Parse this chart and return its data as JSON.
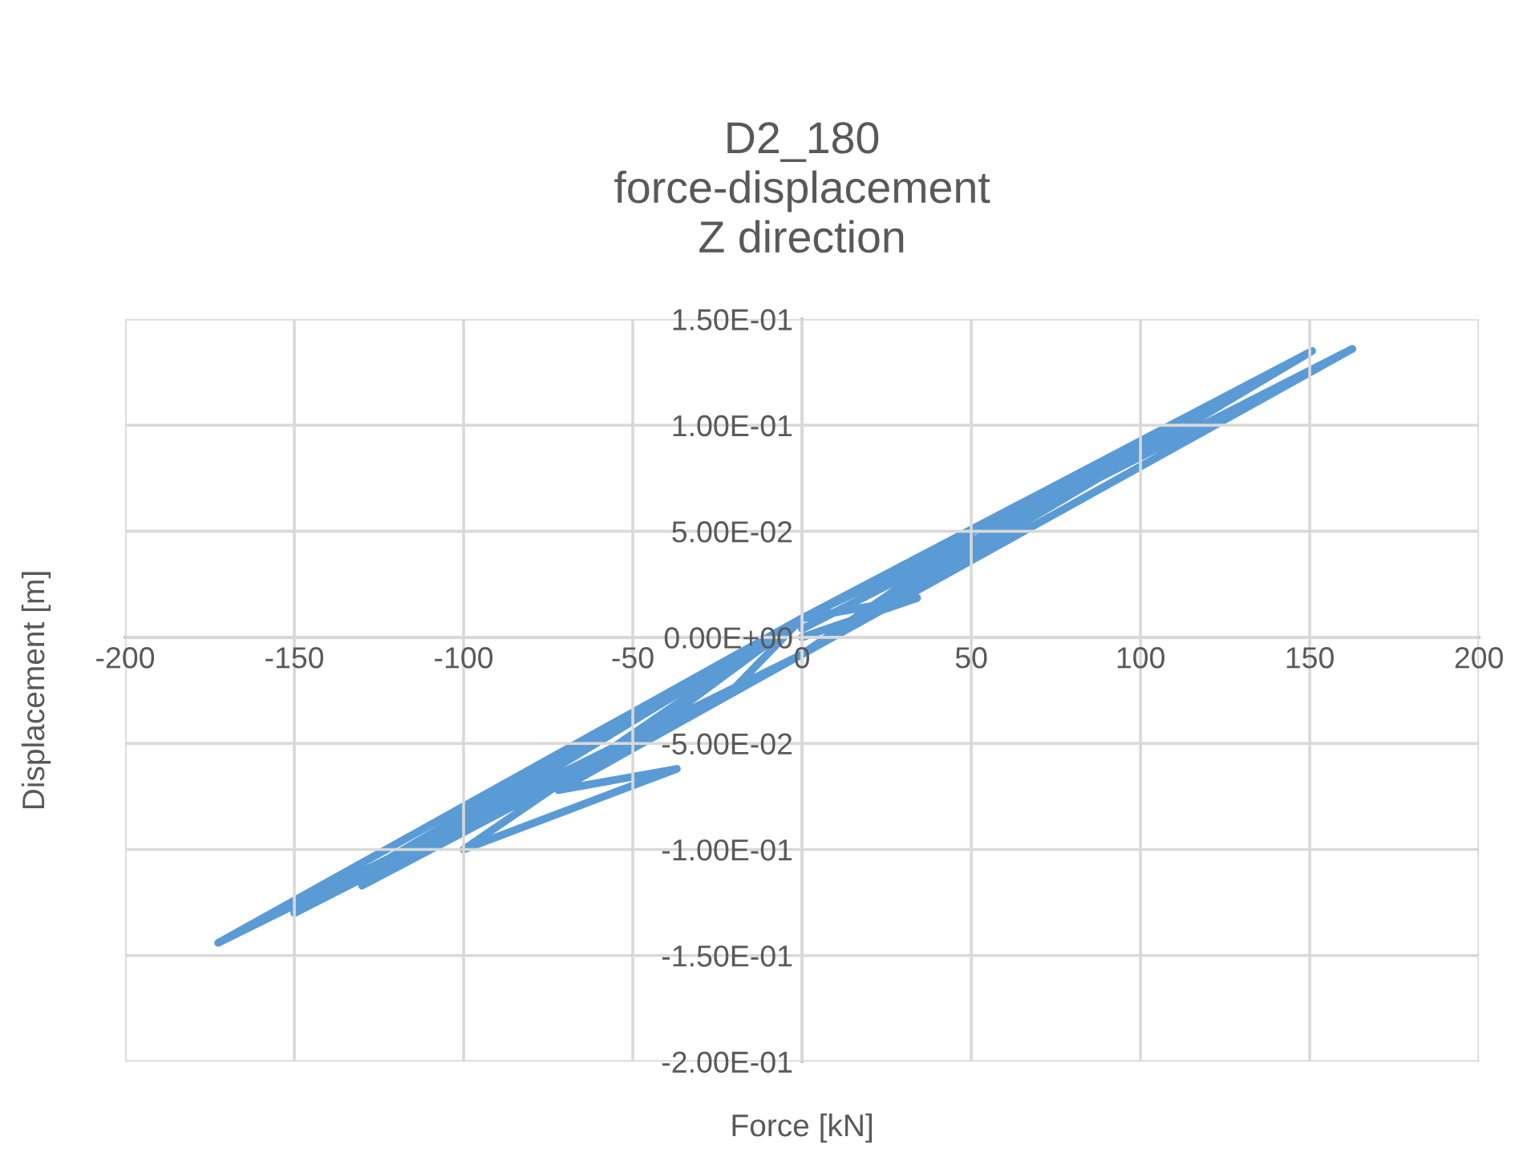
{
  "chart_data": {
    "type": "line",
    "title": "D2_180\nforce-displacement\nZ direction",
    "xlabel": "Force [kN]",
    "ylabel": "Displacement [m]",
    "xlim": [
      -200,
      200
    ],
    "xticks": [
      -200,
      -150,
      -100,
      -50,
      0,
      50,
      100,
      150,
      200
    ],
    "ylim": [
      -0.2,
      0.15
    ],
    "yticks": [
      {
        "value": -0.2,
        "label": "-2.00E-01"
      },
      {
        "value": -0.15,
        "label": "-1.50E-01"
      },
      {
        "value": -0.1,
        "label": "-1.00E-01"
      },
      {
        "value": -0.05,
        "label": "-5.00E-02"
      },
      {
        "value": 0,
        "label": "0.00E+00"
      },
      {
        "value": 0.05,
        "label": "5.00E-02"
      },
      {
        "value": 0.1,
        "label": "1.00E-01"
      },
      {
        "value": 0.15,
        "label": "1.50E-01"
      }
    ],
    "grid": true,
    "legend": false,
    "marker": "none",
    "line_style": "solid",
    "series": [
      {
        "color": "#5b9bd5",
        "x": [
          0,
          34,
          0,
          -20,
          0,
          50,
          0,
          -50,
          0,
          70,
          0,
          -100,
          -37,
          -72,
          0,
          90,
          0,
          -130,
          0,
          110,
          0,
          -150,
          0,
          150.7,
          0,
          -172.5,
          0,
          162.6,
          0
        ],
        "values": [
          0,
          0.0185,
          0.009,
          -0.024,
          -0.008,
          0.047,
          0.009,
          -0.05,
          -0.008,
          0.066,
          0.009,
          -0.1,
          -0.062,
          -0.072,
          -0.008,
          0.083,
          0.009,
          -0.117,
          -0.008,
          0.1,
          0.009,
          -0.13,
          -0.008,
          0.135,
          0.009,
          -0.144,
          -0.008,
          0.136,
          0.004
        ]
      }
    ]
  }
}
